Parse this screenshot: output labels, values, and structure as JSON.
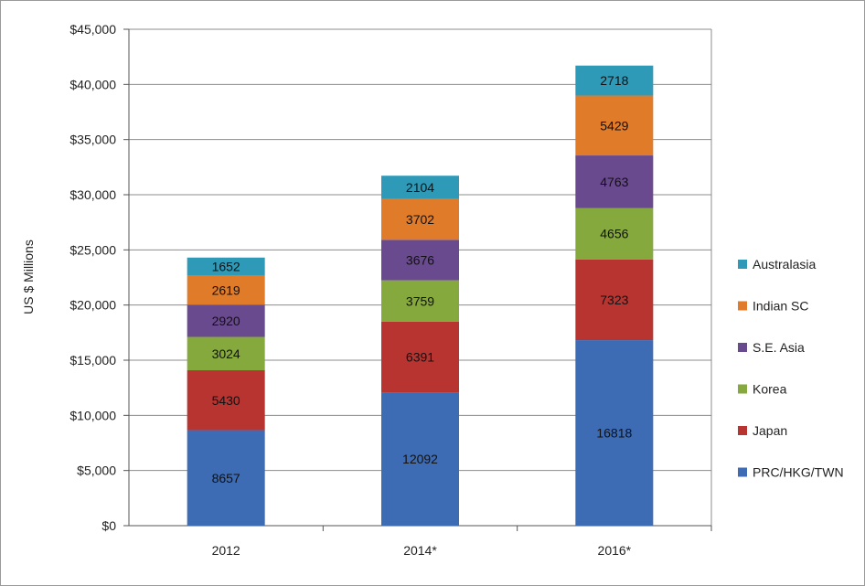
{
  "chart_data": {
    "type": "bar",
    "stacked": true,
    "title": "",
    "xlabel": "",
    "ylabel": "US $ Millions",
    "ylim": [
      0,
      45000
    ],
    "ytick_step": 5000,
    "ytick_labels": [
      "$0",
      "$5,000",
      "$10,000",
      "$15,000",
      "$20,000",
      "$25,000",
      "$30,000",
      "$35,000",
      "$40,000",
      "$45,000"
    ],
    "grid": "horizontal",
    "legend_position": "right",
    "categories": [
      "2012",
      "2014*",
      "2016*"
    ],
    "series": [
      {
        "name": "PRC/HKG/TWN",
        "color": "#3d6cb4",
        "values": [
          8657,
          12092,
          16818
        ]
      },
      {
        "name": "Japan",
        "color": "#b83431",
        "values": [
          5430,
          6391,
          7323
        ]
      },
      {
        "name": "Korea",
        "color": "#86a93e",
        "values": [
          3024,
          3759,
          4656
        ]
      },
      {
        "name": "S.E. Asia",
        "color": "#6a4a8e",
        "values": [
          2920,
          3676,
          4763
        ]
      },
      {
        "name": "Indian SC",
        "color": "#e07b2a",
        "values": [
          2619,
          3702,
          5429
        ]
      },
      {
        "name": "Australasia",
        "color": "#2e9ab8",
        "values": [
          1652,
          2104,
          2718
        ]
      }
    ]
  }
}
